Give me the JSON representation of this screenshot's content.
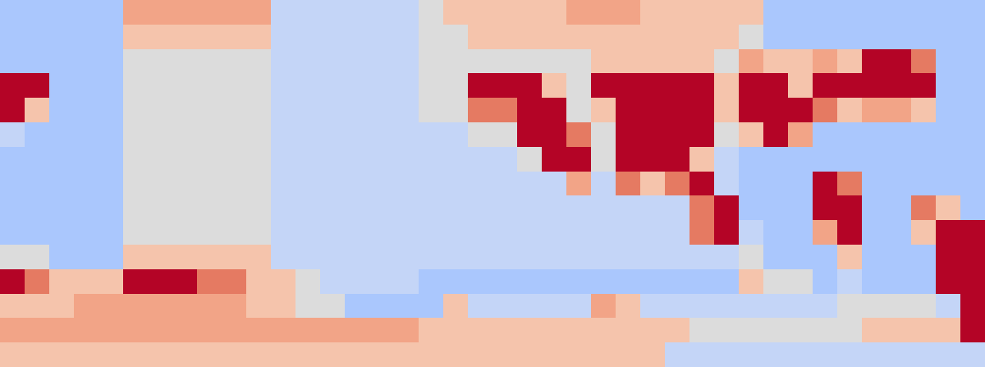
{
  "chart_data": {
    "type": "heatmap",
    "tick_labels": false,
    "xlim": [
      -0.5,
      39.5
    ],
    "ylim": [
      14.5,
      -0.5
    ],
    "zlim": [
      0,
      10
    ],
    "cells": [
      [
        3,
        3,
        3,
        3,
        3,
        7,
        7,
        7,
        7,
        7,
        7,
        4,
        4,
        4,
        4,
        4,
        4,
        5,
        6,
        6,
        6,
        6,
        6,
        7,
        7,
        7,
        6,
        6,
        6,
        6,
        6,
        3,
        3,
        3,
        3,
        3,
        3,
        3,
        3,
        3
      ],
      [
        3,
        3,
        3,
        3,
        3,
        6,
        6,
        6,
        6,
        6,
        6,
        4,
        4,
        4,
        4,
        4,
        4,
        5,
        5,
        6,
        6,
        6,
        6,
        6,
        6,
        6,
        6,
        6,
        6,
        6,
        5,
        3,
        3,
        3,
        3,
        3,
        3,
        3,
        3,
        3
      ],
      [
        3,
        3,
        3,
        3,
        3,
        5,
        5,
        5,
        5,
        5,
        5,
        4,
        4,
        4,
        4,
        4,
        4,
        5,
        5,
        5,
        5,
        5,
        5,
        5,
        6,
        6,
        6,
        6,
        6,
        5,
        7,
        6,
        6,
        7,
        6,
        10,
        10,
        8,
        3,
        3
      ],
      [
        10,
        10,
        3,
        3,
        3,
        5,
        5,
        5,
        5,
        5,
        5,
        4,
        4,
        4,
        4,
        4,
        4,
        5,
        5,
        10,
        10,
        10,
        6,
        5,
        10,
        10,
        10,
        10,
        10,
        6,
        10,
        10,
        6,
        10,
        10,
        10,
        10,
        10,
        3,
        3
      ],
      [
        10,
        6,
        3,
        3,
        3,
        5,
        5,
        5,
        5,
        5,
        5,
        4,
        4,
        4,
        4,
        4,
        4,
        5,
        5,
        8,
        8,
        10,
        10,
        5,
        6,
        10,
        10,
        10,
        10,
        6,
        10,
        10,
        10,
        8,
        6,
        7,
        7,
        6,
        3,
        3
      ],
      [
        4,
        3,
        3,
        3,
        3,
        5,
        5,
        5,
        5,
        5,
        5,
        4,
        4,
        4,
        4,
        4,
        4,
        4,
        4,
        5,
        5,
        10,
        10,
        8,
        5,
        10,
        10,
        10,
        10,
        5,
        6,
        10,
        7,
        3,
        3,
        3,
        3,
        3,
        3,
        3
      ],
      [
        3,
        3,
        3,
        3,
        3,
        5,
        5,
        5,
        5,
        5,
        5,
        4,
        4,
        4,
        4,
        4,
        4,
        4,
        4,
        4,
        4,
        5,
        10,
        10,
        5,
        10,
        10,
        10,
        6,
        4,
        3,
        3,
        3,
        3,
        3,
        3,
        3,
        3,
        3,
        3
      ],
      [
        3,
        3,
        3,
        3,
        3,
        5,
        5,
        5,
        5,
        5,
        5,
        4,
        4,
        4,
        4,
        4,
        4,
        4,
        4,
        4,
        4,
        4,
        4,
        7,
        4,
        8,
        6,
        8,
        10,
        4,
        3,
        3,
        3,
        10,
        8,
        3,
        3,
        3,
        3,
        3
      ],
      [
        3,
        3,
        3,
        3,
        3,
        5,
        5,
        5,
        5,
        5,
        5,
        4,
        4,
        4,
        4,
        4,
        4,
        4,
        4,
        4,
        4,
        4,
        4,
        4,
        4,
        4,
        4,
        4,
        8,
        10,
        3,
        3,
        3,
        10,
        10,
        3,
        3,
        8,
        6,
        3
      ],
      [
        3,
        3,
        3,
        3,
        3,
        5,
        5,
        5,
        5,
        5,
        5,
        4,
        4,
        4,
        4,
        4,
        4,
        4,
        4,
        4,
        4,
        4,
        4,
        4,
        4,
        4,
        4,
        4,
        8,
        10,
        4,
        3,
        3,
        7,
        10,
        3,
        3,
        6,
        10,
        10
      ],
      [
        5,
        5,
        3,
        3,
        3,
        6,
        6,
        6,
        6,
        6,
        6,
        4,
        4,
        4,
        4,
        4,
        4,
        4,
        4,
        4,
        4,
        4,
        4,
        4,
        4,
        4,
        4,
        4,
        4,
        4,
        5,
        3,
        3,
        3,
        6,
        3,
        3,
        3,
        10,
        10
      ],
      [
        10,
        8,
        6,
        6,
        6,
        10,
        10,
        10,
        8,
        8,
        6,
        6,
        5,
        4,
        4,
        4,
        4,
        3,
        3,
        3,
        3,
        3,
        3,
        3,
        3,
        3,
        3,
        3,
        3,
        3,
        6,
        5,
        5,
        3,
        4,
        3,
        3,
        3,
        10,
        10
      ],
      [
        6,
        6,
        6,
        7,
        7,
        7,
        7,
        7,
        7,
        7,
        6,
        6,
        5,
        5,
        3,
        3,
        3,
        3,
        6,
        4,
        4,
        4,
        4,
        4,
        7,
        6,
        4,
        4,
        4,
        4,
        4,
        4,
        4,
        4,
        5,
        5,
        5,
        5,
        4,
        10
      ],
      [
        7,
        7,
        7,
        7,
        7,
        7,
        7,
        7,
        7,
        7,
        7,
        7,
        7,
        7,
        7,
        7,
        7,
        6,
        6,
        6,
        6,
        6,
        6,
        6,
        6,
        6,
        6,
        6,
        5,
        5,
        5,
        5,
        5,
        5,
        5,
        6,
        6,
        6,
        6,
        10
      ],
      [
        6,
        6,
        6,
        6,
        6,
        6,
        6,
        6,
        6,
        6,
        6,
        6,
        6,
        6,
        6,
        6,
        6,
        6,
        6,
        6,
        6,
        6,
        6,
        6,
        6,
        6,
        6,
        4,
        4,
        4,
        4,
        4,
        4,
        4,
        4,
        4,
        4,
        4,
        4,
        4
      ]
    ]
  }
}
